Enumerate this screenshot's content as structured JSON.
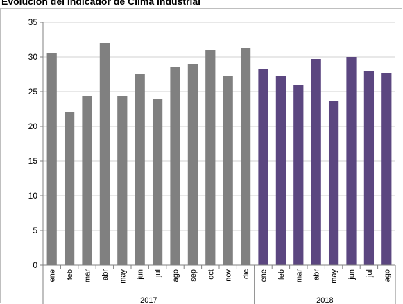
{
  "chart_data": {
    "type": "bar",
    "title": "Evolución del indicador de Clima Industrial",
    "xlabel": "",
    "ylabel": "",
    "ylim": [
      0,
      35
    ],
    "yticks": [
      0,
      5,
      10,
      15,
      20,
      25,
      30,
      35
    ],
    "grid": "horizontal",
    "categories": [
      "ene",
      "feb",
      "mar",
      "abr",
      "may",
      "jun",
      "jul",
      "ago",
      "sep",
      "oct",
      "nov",
      "dic",
      "ene",
      "feb",
      "mar",
      "abr",
      "may",
      "jun",
      "jul",
      "ago"
    ],
    "groups": [
      {
        "label": "2017",
        "start": 0,
        "count": 12,
        "color": "#808080"
      },
      {
        "label": "2018",
        "start": 12,
        "count": 8,
        "color": "#5b4680"
      }
    ],
    "values": [
      30.6,
      22.0,
      24.3,
      32.0,
      24.3,
      27.6,
      24.0,
      28.6,
      29.0,
      31.0,
      27.3,
      31.3,
      28.3,
      27.3,
      26.0,
      29.7,
      23.6,
      30.0,
      28.0,
      27.7
    ]
  }
}
